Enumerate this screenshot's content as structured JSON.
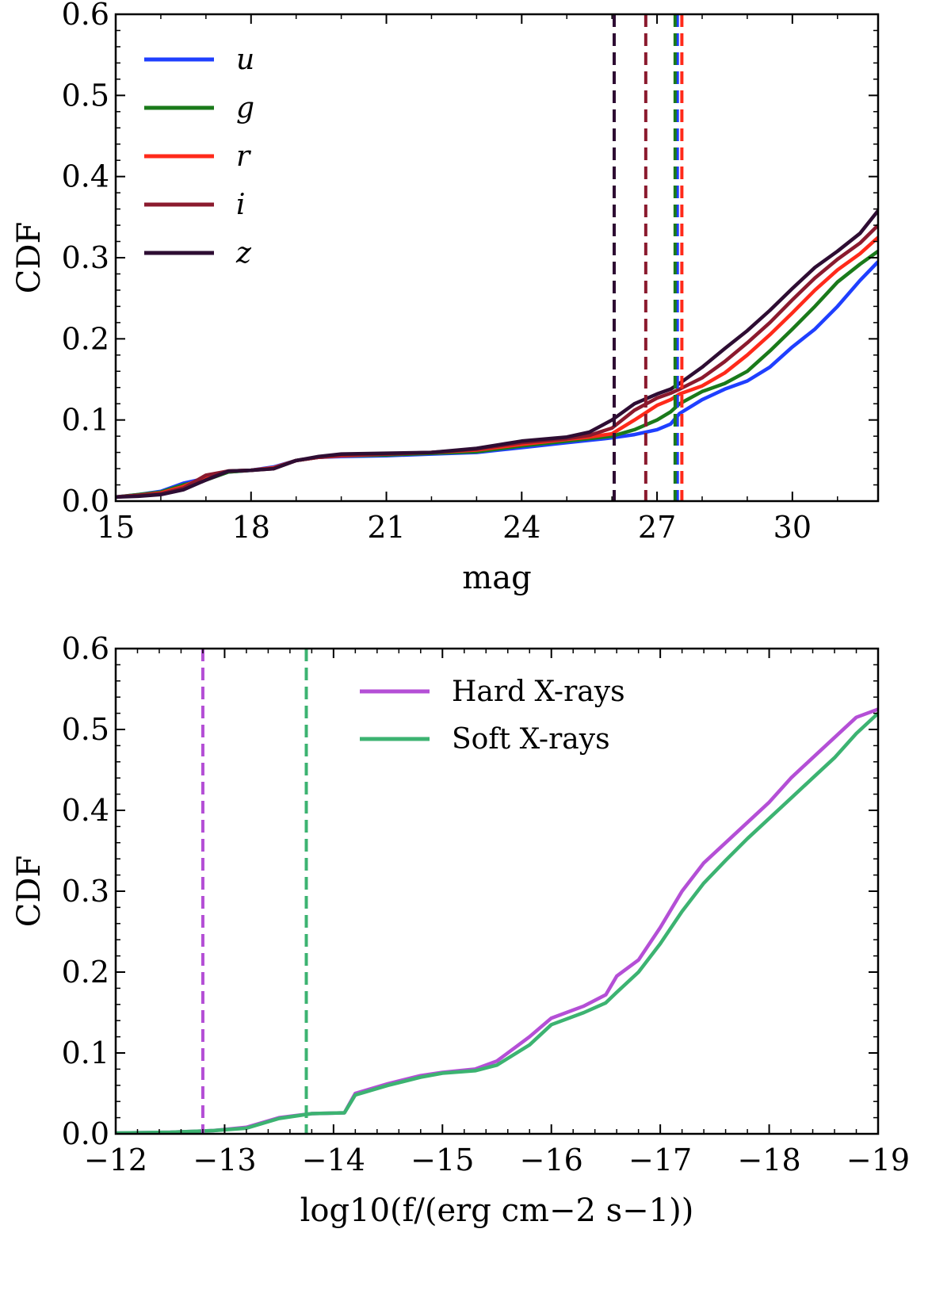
{
  "chart_data": [
    {
      "type": "line",
      "xlabel": "mag",
      "ylabel": "CDF",
      "xlim": [
        15,
        31.9
      ],
      "ylim": [
        0,
        0.6
      ],
      "xticks": [
        "15",
        "18",
        "21",
        "24",
        "27",
        "30"
      ],
      "yticks": [
        "0.0",
        "0.1",
        "0.2",
        "0.3",
        "0.4",
        "0.5",
        "0.6"
      ],
      "legend_position": "top-left",
      "series": [
        {
          "name": "u",
          "color": "#1f3fff",
          "limit": 27.45,
          "x": [
            15,
            15.5,
            16,
            16.5,
            17,
            17.5,
            18,
            18.5,
            19,
            19.5,
            20,
            21,
            22,
            23,
            24,
            25,
            25.5,
            26,
            26.5,
            27,
            27.3,
            27.5,
            28,
            28.5,
            29,
            29.5,
            30,
            30.5,
            31,
            31.5,
            31.9
          ],
          "y": [
            0.005,
            0.008,
            0.012,
            0.022,
            0.028,
            0.036,
            0.038,
            0.042,
            0.05,
            0.054,
            0.055,
            0.056,
            0.058,
            0.06,
            0.066,
            0.072,
            0.075,
            0.078,
            0.082,
            0.088,
            0.095,
            0.108,
            0.125,
            0.138,
            0.148,
            0.165,
            0.19,
            0.212,
            0.24,
            0.272,
            0.295
          ]
        },
        {
          "name": "g",
          "color": "#1a7a1a",
          "limit": 27.4,
          "x": [
            15,
            15.5,
            16,
            16.5,
            17,
            17.5,
            18,
            18.5,
            19,
            19.5,
            20,
            21,
            22,
            23,
            24,
            25,
            25.5,
            26,
            26.5,
            27,
            27.3,
            27.5,
            28,
            28.5,
            29,
            29.5,
            30,
            30.5,
            31,
            31.5,
            31.9
          ],
          "y": [
            0.005,
            0.008,
            0.011,
            0.02,
            0.026,
            0.036,
            0.038,
            0.041,
            0.05,
            0.054,
            0.056,
            0.057,
            0.059,
            0.061,
            0.068,
            0.074,
            0.077,
            0.08,
            0.088,
            0.1,
            0.11,
            0.12,
            0.135,
            0.145,
            0.16,
            0.185,
            0.212,
            0.24,
            0.27,
            0.292,
            0.308
          ]
        },
        {
          "name": "r",
          "color": "#ff2a1a",
          "limit": 27.55,
          "x": [
            15,
            15.5,
            16,
            16.5,
            17,
            17.5,
            18,
            18.5,
            19,
            19.5,
            20,
            21,
            22,
            23,
            24,
            25,
            25.5,
            26,
            26.5,
            27,
            27.3,
            27.5,
            28,
            28.5,
            29,
            29.5,
            30,
            30.5,
            31,
            31.5,
            31.9
          ],
          "y": [
            0.005,
            0.007,
            0.01,
            0.018,
            0.03,
            0.037,
            0.038,
            0.041,
            0.05,
            0.054,
            0.056,
            0.058,
            0.06,
            0.063,
            0.07,
            0.076,
            0.079,
            0.083,
            0.1,
            0.118,
            0.125,
            0.132,
            0.142,
            0.158,
            0.18,
            0.205,
            0.232,
            0.26,
            0.285,
            0.305,
            0.325
          ]
        },
        {
          "name": "i",
          "color": "#8b1a2e",
          "limit": 26.75,
          "x": [
            15,
            15.5,
            16,
            16.5,
            17,
            17.5,
            18,
            18.5,
            19,
            19.5,
            20,
            21,
            22,
            23,
            24,
            25,
            25.5,
            26,
            26.5,
            27,
            27.3,
            27.5,
            28,
            28.5,
            29,
            29.5,
            30,
            30.5,
            31,
            31.5,
            31.9
          ],
          "y": [
            0.005,
            0.007,
            0.009,
            0.016,
            0.032,
            0.037,
            0.038,
            0.04,
            0.05,
            0.054,
            0.057,
            0.058,
            0.06,
            0.064,
            0.072,
            0.077,
            0.081,
            0.09,
            0.112,
            0.127,
            0.133,
            0.138,
            0.152,
            0.172,
            0.195,
            0.22,
            0.248,
            0.275,
            0.298,
            0.318,
            0.34
          ]
        },
        {
          "name": "z",
          "color": "#2e0d33",
          "limit": 26.05,
          "x": [
            15,
            15.5,
            16,
            16.5,
            17,
            17.5,
            18,
            18.5,
            19,
            19.5,
            20,
            21,
            22,
            23,
            24,
            25,
            25.5,
            26,
            26.5,
            27,
            27.3,
            27.5,
            28,
            28.5,
            29,
            29.5,
            30,
            30.5,
            31,
            31.5,
            31.9
          ],
          "y": [
            0.005,
            0.006,
            0.008,
            0.014,
            0.026,
            0.037,
            0.038,
            0.04,
            0.05,
            0.055,
            0.058,
            0.059,
            0.06,
            0.065,
            0.074,
            0.079,
            0.085,
            0.1,
            0.12,
            0.132,
            0.138,
            0.145,
            0.165,
            0.188,
            0.21,
            0.235,
            0.262,
            0.288,
            0.308,
            0.33,
            0.358
          ]
        }
      ]
    },
    {
      "type": "line",
      "xlabel": "log10(f/(erg cm−2 s−1))",
      "ylabel": "CDF",
      "xlim": [
        -12,
        -19
      ],
      "ylim": [
        0,
        0.6
      ],
      "xticks": [
        "−12",
        "−13",
        "−14",
        "−15",
        "−16",
        "−17",
        "−18",
        "−19"
      ],
      "yticks": [
        "0.0",
        "0.1",
        "0.2",
        "0.3",
        "0.4",
        "0.5",
        "0.6"
      ],
      "legend_position": "top-center",
      "series": [
        {
          "name": "Hard X-rays",
          "color": "#b44fd6",
          "limit": -12.8,
          "x": [
            -12,
            -12.5,
            -12.9,
            -13.2,
            -13.5,
            -13.8,
            -14.1,
            -14.2,
            -14.5,
            -14.8,
            -15.0,
            -15.3,
            -15.5,
            -15.8,
            -16.0,
            -16.3,
            -16.5,
            -16.6,
            -16.8,
            -17.0,
            -17.2,
            -17.4,
            -17.6,
            -17.8,
            -18.0,
            -18.2,
            -18.4,
            -18.6,
            -18.8,
            -19.0
          ],
          "y": [
            0.001,
            0.002,
            0.004,
            0.008,
            0.02,
            0.025,
            0.026,
            0.05,
            0.062,
            0.072,
            0.076,
            0.08,
            0.09,
            0.12,
            0.143,
            0.158,
            0.172,
            0.195,
            0.215,
            0.255,
            0.3,
            0.335,
            0.36,
            0.385,
            0.41,
            0.44,
            0.465,
            0.49,
            0.515,
            0.525
          ]
        },
        {
          "name": "Soft X-rays",
          "color": "#3cb371",
          "limit": -13.75,
          "x": [
            -12,
            -12.5,
            -12.9,
            -13.2,
            -13.5,
            -13.8,
            -14.1,
            -14.2,
            -14.5,
            -14.8,
            -15.0,
            -15.3,
            -15.5,
            -15.8,
            -16.0,
            -16.3,
            -16.5,
            -16.6,
            -16.8,
            -17.0,
            -17.2,
            -17.4,
            -17.6,
            -17.8,
            -18.0,
            -18.2,
            -18.4,
            -18.6,
            -18.8,
            -19.0
          ],
          "y": [
            0.001,
            0.002,
            0.004,
            0.007,
            0.019,
            0.025,
            0.026,
            0.048,
            0.06,
            0.07,
            0.075,
            0.078,
            0.085,
            0.11,
            0.135,
            0.15,
            0.162,
            0.175,
            0.2,
            0.235,
            0.275,
            0.31,
            0.338,
            0.365,
            0.39,
            0.415,
            0.44,
            0.465,
            0.495,
            0.52
          ]
        }
      ]
    }
  ]
}
